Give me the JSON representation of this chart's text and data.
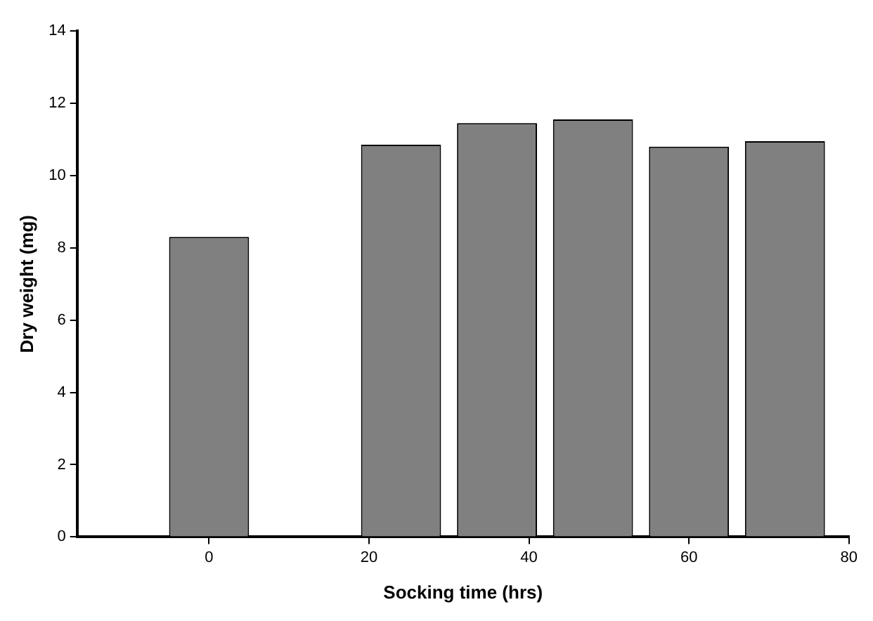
{
  "chart_data": {
    "type": "bar",
    "xlabel": "Socking time (hrs)",
    "ylabel": "Dry weight (mg)",
    "x": [
      0,
      24,
      36,
      48,
      60,
      72
    ],
    "values": [
      8.3,
      10.85,
      11.45,
      11.55,
      10.8,
      10.95
    ],
    "color": "#808080",
    "xlim": [
      -16.5,
      80
    ],
    "xticks": [
      0,
      20,
      40,
      60,
      80
    ],
    "ylim": [
      0,
      14
    ],
    "yticks": [
      0,
      2,
      4,
      6,
      8,
      10,
      12,
      14
    ]
  }
}
